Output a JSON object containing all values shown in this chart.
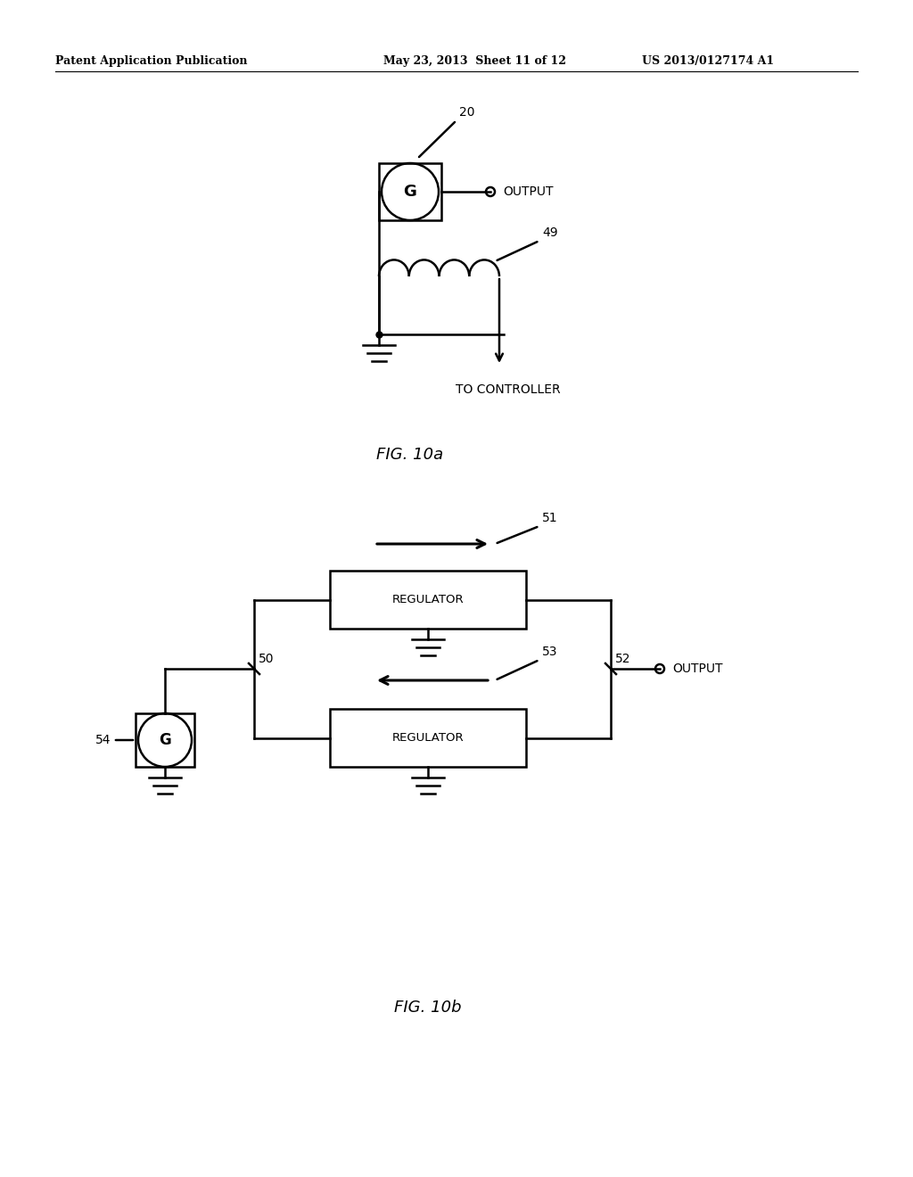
{
  "bg_color": "#ffffff",
  "line_color": "#000000",
  "header_left": "Patent Application Publication",
  "header_mid": "May 23, 2013  Sheet 11 of 12",
  "header_right": "US 2013/0127174 A1",
  "fig_label_a": "FIG. 10a",
  "fig_label_b": "FIG. 10b",
  "label_20": "20",
  "label_49": "49",
  "label_output_a": "OUTPUT",
  "label_to_controller": "TO CONTROLLER",
  "label_50": "50",
  "label_51": "51",
  "label_52": "52",
  "label_53": "53",
  "label_54": "54",
  "label_output_b": "OUTPUT",
  "label_regulator": "REGULATOR"
}
